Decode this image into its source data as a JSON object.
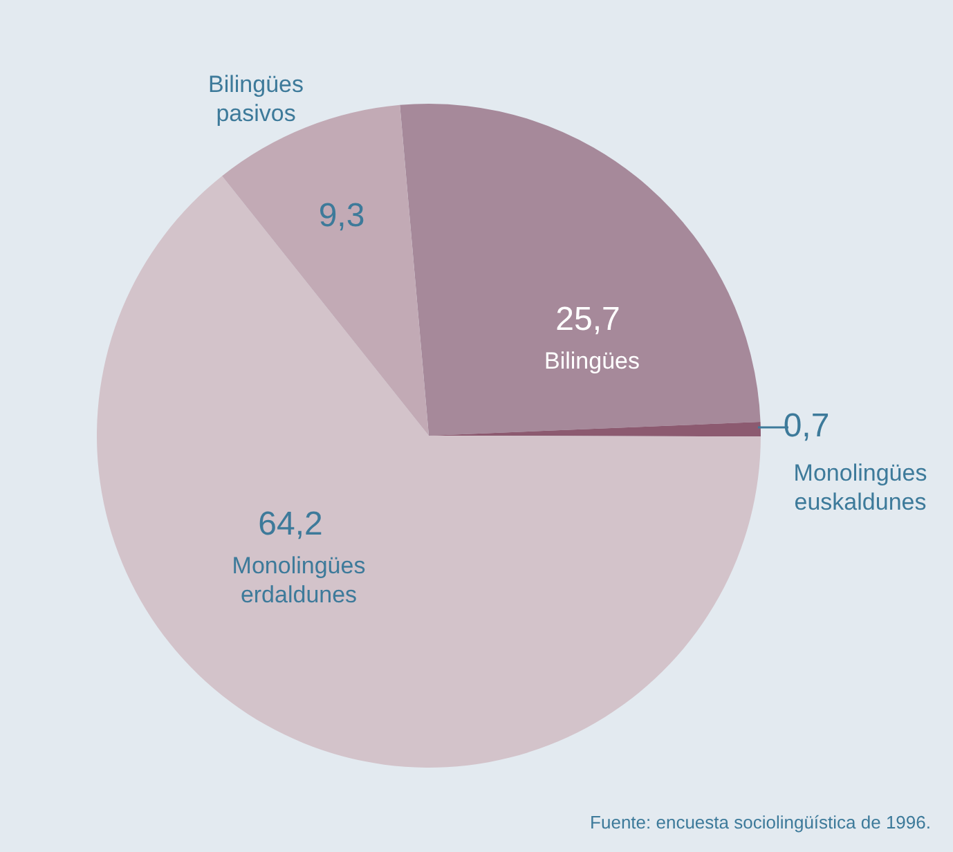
{
  "chart_data": {
    "type": "pie",
    "categories": [
      "Bilingües",
      "Monolingües euskaldunes",
      "Monolingües erdaldunes",
      "Bilingües pasivos"
    ],
    "values": [
      25.7,
      0.7,
      64.2,
      9.3
    ],
    "value_labels": [
      "25,7",
      "0,7",
      "64,2",
      "9,3"
    ],
    "colors": [
      "#a6899a",
      "#8c5a70",
      "#d3c3ca",
      "#c2aab5"
    ],
    "legend": false,
    "annotations": [
      "Fuente: encuesta sociolingüística de 1996."
    ]
  }
}
